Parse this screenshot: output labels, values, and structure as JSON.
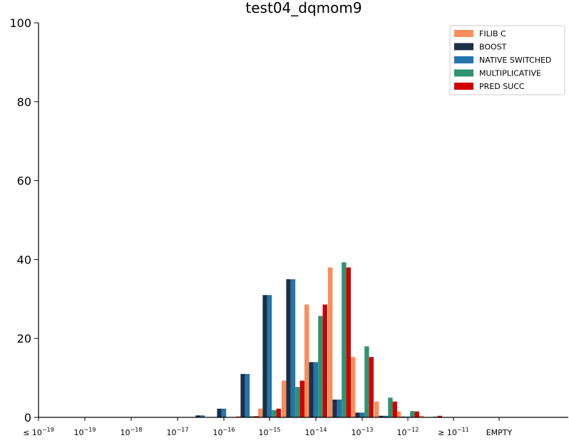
{
  "chart_data": {
    "type": "bar",
    "title": "test04_dqmom9",
    "xlabel": "",
    "ylabel": "",
    "ylim": [
      0,
      100
    ],
    "yticks": [
      "0",
      "20",
      "40",
      "60",
      "80",
      "100"
    ],
    "ytick_values": [
      0,
      20,
      40,
      60,
      80,
      100
    ],
    "categories": [
      {
        "base": "≤ 10",
        "exp": "−19"
      },
      {
        "base": "10",
        "exp": "−19"
      },
      {
        "base": "10",
        "exp": "−18"
      },
      {
        "base": "10",
        "exp": "−17"
      },
      {
        "base": "",
        "exp": ""
      },
      {
        "base": "10",
        "exp": "−16"
      },
      {
        "base": "",
        "exp": ""
      },
      {
        "base": "10",
        "exp": "−15"
      },
      {
        "base": "",
        "exp": ""
      },
      {
        "base": "10",
        "exp": "−14"
      },
      {
        "base": "",
        "exp": ""
      },
      {
        "base": "10",
        "exp": "−13"
      },
      {
        "base": "",
        "exp": ""
      },
      {
        "base": "10",
        "exp": "−12"
      },
      {
        "base": "",
        "exp": ""
      },
      {
        "base": "≥ 10",
        "exp": "−11"
      },
      {
        "base": "",
        "exp": ""
      },
      {
        "base": "EMPTY",
        "exp": ""
      }
    ],
    "bin_labels_note": "",
    "series": [
      {
        "name": "FILIB C",
        "color": "#fc8d59",
        "values": [
          0,
          0,
          0,
          0,
          0,
          0,
          0.3,
          2.2,
          9.3,
          28.6,
          38.0,
          15.3,
          4.0,
          1.5,
          0.4,
          0,
          0,
          0
        ]
      },
      {
        "name": "BOOST",
        "color": "#1b2f45",
        "values": [
          0,
          0,
          0,
          0,
          0.5,
          2.2,
          11.0,
          31.0,
          35.0,
          14.0,
          4.5,
          1.2,
          0.4,
          0.2,
          0,
          0,
          0,
          0
        ]
      },
      {
        "name": "NATIVE SWITCHED",
        "color": "#2475ac",
        "values": [
          0,
          0,
          0,
          0,
          0.5,
          2.2,
          11.0,
          31.0,
          35.0,
          14.0,
          4.5,
          1.2,
          0.4,
          0.2,
          0,
          0,
          0,
          0
        ]
      },
      {
        "name": "MULTIPLICATIVE",
        "color": "#2e9470",
        "values": [
          0,
          0,
          0,
          0,
          0,
          0,
          0.3,
          1.8,
          7.7,
          25.7,
          39.3,
          18.0,
          5.0,
          1.6,
          0.2,
          0,
          0,
          0
        ]
      },
      {
        "name": "PRED SUCC",
        "color": "#d00000",
        "values": [
          0,
          0,
          0,
          0,
          0,
          0,
          0.3,
          2.2,
          9.3,
          28.6,
          38.0,
          15.3,
          4.0,
          1.5,
          0.4,
          0,
          0,
          0
        ]
      }
    ],
    "grid": false,
    "legend_position": "top-right"
  }
}
